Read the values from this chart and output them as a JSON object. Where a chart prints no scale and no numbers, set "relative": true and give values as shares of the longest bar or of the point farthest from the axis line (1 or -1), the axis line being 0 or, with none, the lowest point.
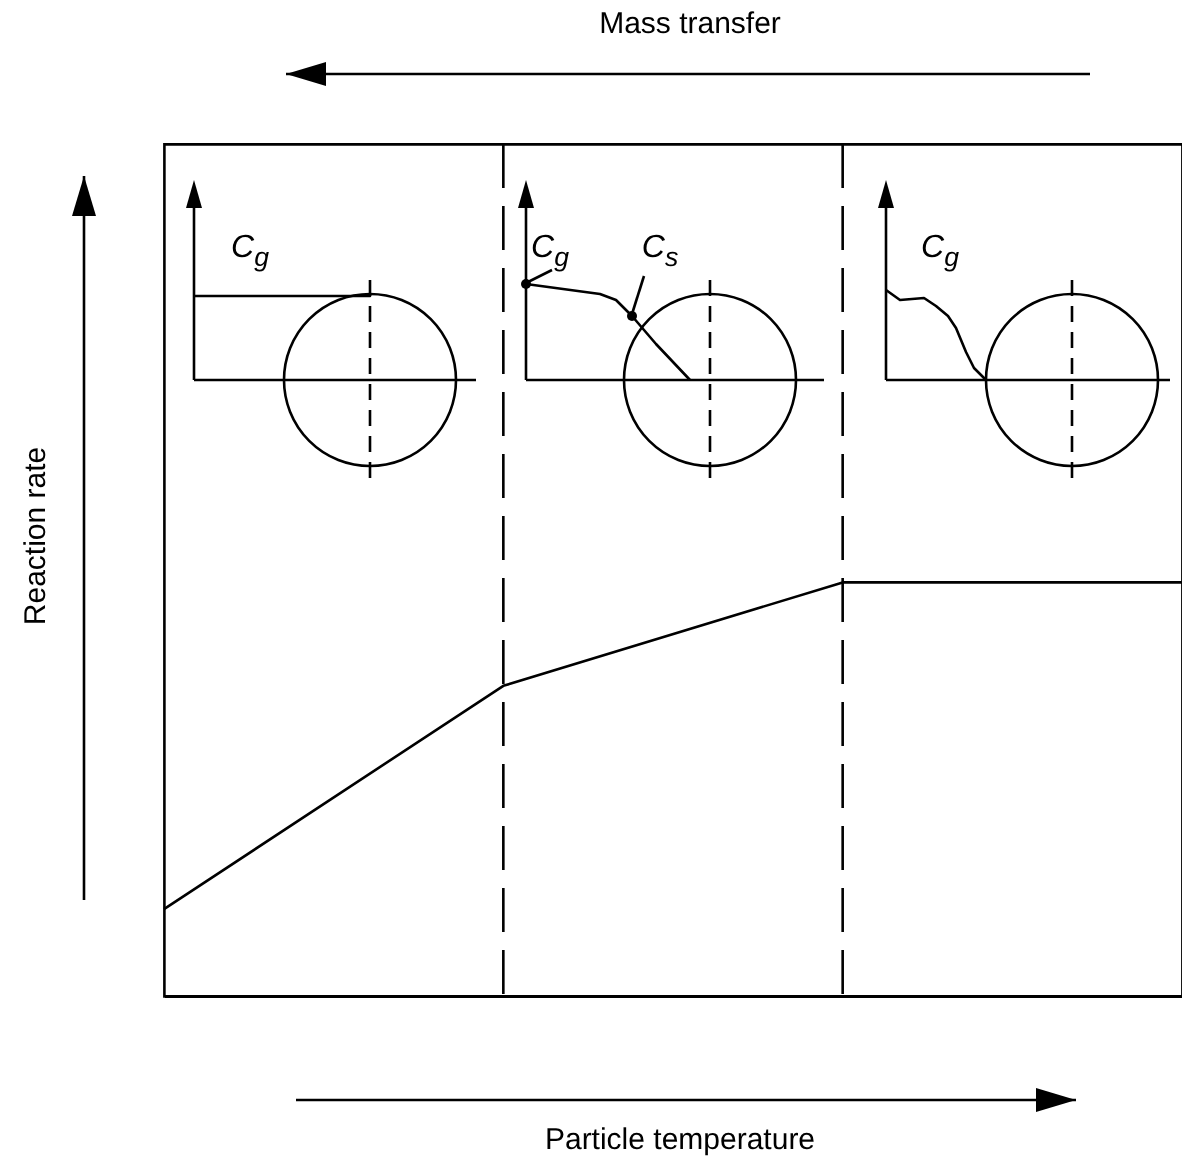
{
  "chart_data": {
    "type": "line",
    "relative": true,
    "categories": [
      null,
      null,
      null,
      null
    ],
    "values": [
      0.21,
      0.75,
      1,
      1
    ],
    "color": "#000000",
    "xlabel": "Particle temperature",
    "ylabel": "Reaction rate",
    "tick_labels": false,
    "annotations": [
      "Mass transfer",
      "C$_{g}$",
      "C$_{g}$",
      "C$_{s}$",
      "C$_{g}$"
    ]
  }
}
